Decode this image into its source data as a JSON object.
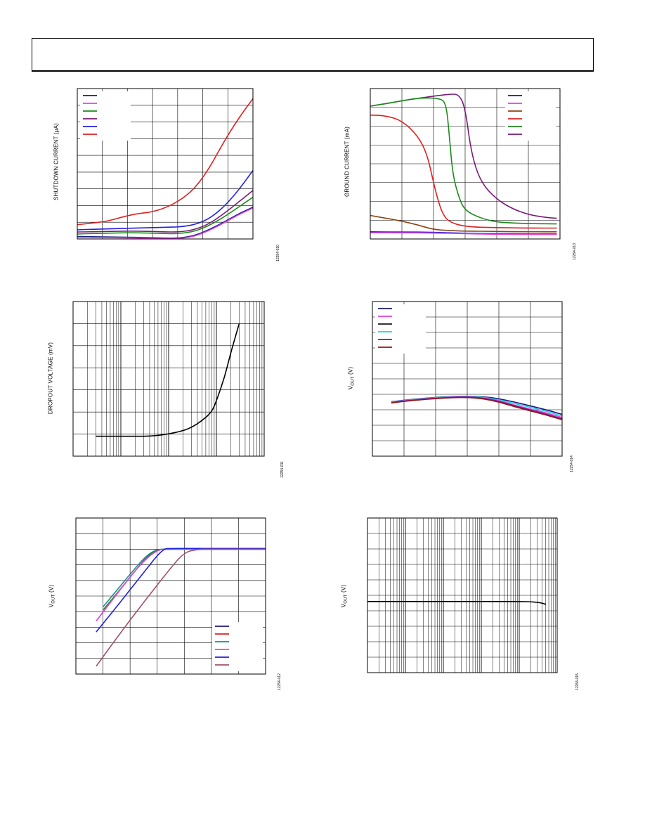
{
  "chart_data": [
    {
      "id": "shutdown",
      "type": "line",
      "ylabel": "SHUTDOWN CURRENT (µA)",
      "fig_id": "12254-010",
      "grid": true,
      "xlim": [
        0,
        6
      ],
      "ylim": [
        0,
        9
      ],
      "legend": {
        "placement": "top-left",
        "colors": [
          "#1a1a80",
          "#e040e0",
          "#1a8c1a",
          "#7a1a7a",
          "#2020e0",
          "#e02020"
        ]
      },
      "series": [
        {
          "color": "#e02020",
          "x": [
            -0.6,
            0,
            0.5,
            1,
            1.5,
            2,
            2.5,
            3,
            3.5,
            4,
            4.5,
            5,
            5.5,
            6
          ],
          "y": [
            0.8,
            0.85,
            0.95,
            1.05,
            1.3,
            1.5,
            1.6,
            1.85,
            2.3,
            3.0,
            4.2,
            5.8,
            7.2,
            8.4
          ]
        },
        {
          "color": "#2020e0",
          "x": [
            -0.6,
            0,
            1,
            2,
            3,
            3.5,
            4,
            4.5,
            5,
            5.5,
            6
          ],
          "y": [
            0.5,
            0.55,
            0.6,
            0.65,
            0.7,
            0.72,
            0.85,
            1.2,
            1.9,
            2.9,
            4.1
          ]
        },
        {
          "color": "#7a1a7a",
          "x": [
            -0.6,
            0,
            1,
            2,
            3,
            3.5,
            4,
            4.5,
            5,
            5.5,
            6
          ],
          "y": [
            0.4,
            0.42,
            0.45,
            0.48,
            0.42,
            0.42,
            0.55,
            0.9,
            1.5,
            2.2,
            2.9
          ]
        },
        {
          "color": "#1a8c1a",
          "x": [
            -0.6,
            0,
            1,
            2,
            3,
            3.5,
            4,
            4.5,
            5,
            5.5,
            6
          ],
          "y": [
            0.25,
            0.3,
            0.35,
            0.38,
            0.32,
            0.32,
            0.45,
            0.8,
            1.3,
            1.9,
            2.5
          ]
        },
        {
          "color": "#1a1a80",
          "x": [
            -0.6,
            0,
            1,
            2,
            3,
            3.5,
            4,
            4.5,
            5,
            5.5,
            6
          ],
          "y": [
            0.15,
            0.15,
            0.12,
            0.1,
            0.05,
            0.05,
            0.2,
            0.55,
            1.0,
            1.5,
            1.9
          ]
        },
        {
          "color": "#e040e0",
          "x": [
            -0.6,
            0,
            1,
            2,
            3,
            3.5,
            4,
            4.5,
            5,
            5.5,
            6
          ],
          "y": [
            0.1,
            0.1,
            0.08,
            0.06,
            0.02,
            0.02,
            0.15,
            0.5,
            0.95,
            1.45,
            1.85
          ]
        }
      ]
    },
    {
      "id": "ground",
      "type": "line",
      "ylabel": "GROUND CURRENT (mA)",
      "fig_id": "12254-013",
      "grid": true,
      "xlim": [
        0,
        6
      ],
      "ylim": [
        0,
        8
      ],
      "legend": {
        "placement": "top-right",
        "colors": [
          "#1a1a80",
          "#e040e0",
          "#8b4513",
          "#e02020",
          "#1a8c1a",
          "#7a1a7a"
        ]
      },
      "series": [
        {
          "color": "#7a1a7a",
          "x": [
            -0.25,
            0.5,
            1,
            2,
            2.5,
            2.8,
            3,
            3.2,
            3.5,
            4,
            4.5,
            5,
            5.5,
            5.9
          ],
          "y": [
            7.0,
            7.2,
            7.35,
            7.6,
            7.7,
            7.7,
            7.0,
            4.5,
            3.0,
            2.1,
            1.6,
            1.3,
            1.15,
            1.1
          ]
        },
        {
          "color": "#1a8c1a",
          "x": [
            -0.25,
            0.5,
            1,
            1.5,
            2.2,
            2.4,
            2.5,
            2.6,
            2.8,
            3,
            3.5,
            4,
            4.5,
            5,
            5.9
          ],
          "y": [
            7.0,
            7.2,
            7.35,
            7.5,
            7.5,
            7.2,
            5.5,
            3.5,
            2.2,
            1.5,
            1.1,
            0.9,
            0.85,
            0.82,
            0.8
          ]
        },
        {
          "color": "#e02020",
          "x": [
            -0.2,
            0,
            0.5,
            1,
            1.5,
            1.8,
            2,
            2.15,
            2.3,
            2.5,
            3,
            4,
            5,
            5.9
          ],
          "y": [
            6.55,
            6.6,
            6.55,
            6.3,
            5.5,
            4.5,
            3.0,
            2.0,
            1.3,
            0.9,
            0.65,
            0.6,
            0.58,
            0.58
          ]
        },
        {
          "color": "#8b4513",
          "x": [
            0,
            0.5,
            1,
            1.5,
            2,
            2.5,
            3,
            4,
            5,
            5.9
          ],
          "y": [
            1.25,
            1.1,
            0.95,
            0.75,
            0.5,
            0.45,
            0.42,
            0.4,
            0.38,
            0.38
          ]
        },
        {
          "color": "#2020e0",
          "x": [
            0,
            1,
            2,
            3,
            4,
            5,
            5.9
          ],
          "y": [
            0.38,
            0.37,
            0.36,
            0.3,
            0.28,
            0.27,
            0.27
          ]
        },
        {
          "color": "#e040e0",
          "x": [
            0,
            1,
            2,
            3,
            4,
            5,
            5.9
          ],
          "y": [
            0.33,
            0.33,
            0.32,
            0.28,
            0.25,
            0.24,
            0.24
          ]
        }
      ]
    },
    {
      "id": "dropout",
      "type": "line",
      "ylabel": "DROPOUT VOLTAGE (mV)",
      "fig_id": "12254-011",
      "grid": true,
      "xscale": "log",
      "xlim": [
        0.1,
        1000
      ],
      "ylim": [
        0,
        7
      ],
      "series": [
        {
          "color": "#000000",
          "x": [
            0.3,
            0.5,
            1,
            2,
            3,
            5,
            10,
            20,
            30,
            50,
            80,
            100,
            150,
            200,
            300
          ],
          "y": [
            0.9,
            0.9,
            0.9,
            0.9,
            0.9,
            0.92,
            1.0,
            1.15,
            1.3,
            1.6,
            2.0,
            2.5,
            3.6,
            4.7,
            6.0
          ]
        }
      ]
    },
    {
      "id": "vout-temp",
      "type": "line",
      "ylabel": "V",
      "ylabel_sub": "OUT",
      "ylabel_unit": "(V)",
      "fig_id": "12254-014",
      "grid": true,
      "xlim": [
        0,
        6
      ],
      "ylim": [
        0,
        10
      ],
      "legend": {
        "placement": "top-left",
        "colors": [
          "#1a1a80",
          "#e040e0",
          "#1a1a1a",
          "#20d0e0",
          "#7a1a7a",
          "#8b1a1a"
        ]
      },
      "series": [
        {
          "color": "#1a1a80",
          "x": [
            0.6,
            1,
            1.5,
            2,
            2.5,
            3,
            3.5,
            4,
            4.5,
            5,
            5.5,
            6
          ],
          "y": [
            3.52,
            3.62,
            3.72,
            3.8,
            3.86,
            3.88,
            3.85,
            3.72,
            3.5,
            3.25,
            3.0,
            2.7
          ]
        },
        {
          "color": "#20d0e0",
          "x": [
            0.6,
            1,
            1.5,
            2,
            2.5,
            3,
            3.5,
            4,
            4.5,
            5,
            5.5,
            6
          ],
          "y": [
            3.5,
            3.6,
            3.7,
            3.78,
            3.84,
            3.86,
            3.82,
            3.65,
            3.4,
            3.15,
            2.9,
            2.6
          ]
        },
        {
          "color": "#e040e0",
          "x": [
            0.6,
            1,
            1.5,
            2,
            2.5,
            3,
            3.5,
            4,
            4.5,
            5,
            5.5,
            6
          ],
          "y": [
            3.48,
            3.58,
            3.68,
            3.76,
            3.82,
            3.84,
            3.78,
            3.6,
            3.3,
            3.05,
            2.8,
            2.5
          ]
        },
        {
          "color": "#7a1a7a",
          "x": [
            0.6,
            1,
            1.5,
            2,
            2.5,
            3,
            3.5,
            4,
            4.5,
            5,
            5.5,
            6
          ],
          "y": [
            3.46,
            3.56,
            3.66,
            3.74,
            3.8,
            3.82,
            3.76,
            3.55,
            3.25,
            2.98,
            2.72,
            2.42
          ]
        },
        {
          "color": "#8b1a1a",
          "x": [
            0.6,
            1,
            1.5,
            2,
            2.5,
            3,
            3.5,
            4,
            4.5,
            5,
            5.5,
            6
          ],
          "y": [
            3.44,
            3.54,
            3.64,
            3.72,
            3.78,
            3.8,
            3.72,
            3.5,
            3.2,
            2.92,
            2.66,
            2.36
          ]
        }
      ]
    },
    {
      "id": "vout-vin",
      "type": "line",
      "ylabel": "V",
      "ylabel_sub": "OUT",
      "ylabel_unit": "(V)",
      "fig_id": "12254-012",
      "grid": true,
      "xlim": [
        0,
        7
      ],
      "ylim": [
        0,
        10
      ],
      "legend": {
        "placement": "bottom-right",
        "colors": [
          "#1a1a80",
          "#e02020",
          "#1a8c8c",
          "#e040e0",
          "#2020e0",
          "#a05070"
        ]
      },
      "series": [
        {
          "color": "#1a8c8c",
          "x": [
            1,
            2,
            2.6,
            3,
            3.5,
            4,
            5,
            6,
            7
          ],
          "y": [
            4.3,
            6.4,
            7.6,
            8.0,
            8.02,
            8.02,
            8.02,
            8.02,
            8.02
          ]
        },
        {
          "color": "#1a8c1a",
          "x": [
            1,
            2,
            2.6,
            3,
            3.5,
            4,
            5,
            6,
            7
          ],
          "y": [
            4.1,
            6.2,
            7.5,
            7.98,
            8.0,
            8.0,
            8.0,
            8.0,
            8.0
          ]
        },
        {
          "color": "#e040e0",
          "x": [
            0.75,
            1.5,
            2.3,
            3,
            3.5,
            4,
            5,
            6,
            7
          ],
          "y": [
            3.4,
            5.1,
            6.9,
            8.0,
            8.0,
            8.0,
            8.0,
            8.0,
            8.0
          ]
        },
        {
          "color": "#2020e0",
          "x": [
            0.75,
            1.5,
            2.5,
            3.2,
            3.5,
            4,
            5,
            6,
            7
          ],
          "y": [
            2.7,
            4.3,
            6.5,
            8.02,
            8.05,
            8.05,
            8.05,
            8.05,
            8.05
          ]
        },
        {
          "color": "#a05070",
          "x": [
            0.75,
            1.5,
            2.5,
            3.5,
            4,
            4.5,
            5,
            6,
            7
          ],
          "y": [
            0.5,
            2.3,
            4.6,
            6.8,
            7.8,
            8.0,
            8.0,
            8.0,
            8.0
          ]
        }
      ]
    },
    {
      "id": "vout-log",
      "type": "line",
      "ylabel": "V",
      "ylabel_sub": "OUT",
      "ylabel_unit": "(V)",
      "fig_id": "12254-015",
      "grid": true,
      "xscale": "log",
      "xlim": [
        1,
        100000
      ],
      "ylim": [
        0,
        10
      ],
      "series": [
        {
          "color": "#000000",
          "x": [
            1,
            10,
            100,
            1000,
            10000,
            20000,
            30000,
            40000,
            50000
          ],
          "y": [
            4.6,
            4.6,
            4.6,
            4.6,
            4.6,
            4.58,
            4.55,
            4.5,
            4.42
          ]
        }
      ]
    }
  ]
}
